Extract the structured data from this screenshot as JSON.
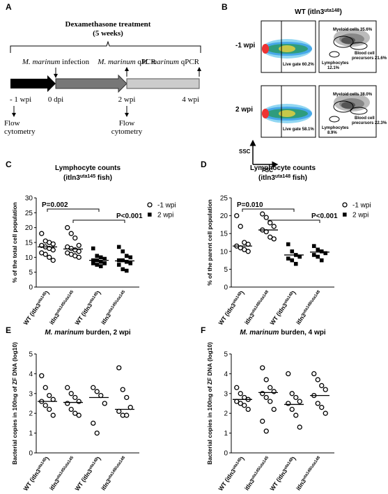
{
  "panel_a": {
    "letter": "A",
    "treatment": "Dexamethasone treatment",
    "duration": "(5 weeks)",
    "events": [
      [
        "M. marinum",
        " infection"
      ],
      [
        "M. marinum",
        " qPCR"
      ],
      [
        "M. marinum",
        " qPCR"
      ]
    ],
    "timepoints": [
      "- 1 wpi",
      "0 dpi",
      "2 wpi",
      "4 wpi"
    ],
    "flow": [
      [
        "Flow",
        "cytometry"
      ],
      [
        "Flow",
        "cytometry"
      ]
    ]
  },
  "panel_b": {
    "letter": "B",
    "title": [
      "WT (itln3",
      "uta148",
      ")"
    ],
    "rows": [
      {
        "label": "-1 wpi",
        "live_gate": "Live gate 60.2%",
        "myeloid": "Myeloid cells 35.6%",
        "precursors": [
          "Blood cell",
          "precursors 21.6%"
        ],
        "lymphocytes": [
          "Lymphocytes",
          "12.1%"
        ]
      },
      {
        "label": "2 wpi",
        "live_gate": "Live gate 58.1%",
        "myeloid": "Myeloid cells 38.0%",
        "precursors": [
          "Blood cell",
          "precursors 22.3%"
        ],
        "lymphocytes": [
          "Lymphocytes",
          "8.9%"
        ]
      }
    ],
    "y_axis": "SSC",
    "x_axis": "FSC"
  },
  "chart_data": [
    {
      "type": "dot",
      "panel": "C",
      "title": "Lymphocyte counts",
      "subtitle": [
        "(itln3",
        "uta145",
        " fish)"
      ],
      "ylabel": "% of the total cell population",
      "categories": [
        [
          "WT (itln3",
          "uta145",
          ")"
        ],
        [
          "itln3",
          "uta145/uta145"
        ],
        [
          "WT (itln3",
          "uta145",
          ")"
        ],
        [
          "itln3",
          "uta145/uta145"
        ]
      ],
      "series": [
        {
          "name": "-1 wpi",
          "marker": "circle",
          "color": "#000000",
          "values": [
            [
              18,
              15.5,
              15,
              14.5,
              14,
              13.5,
              13,
              12.5,
              11.5,
              11,
              10,
              9
            ],
            [
              20,
              18,
              16.5,
              14,
              13.5,
              13,
              12.5,
              12,
              11.5,
              11,
              10.5,
              10
            ],
            null,
            null
          ]
        },
        {
          "name": "2 wpi",
          "marker": "square",
          "color": "#000000",
          "values": [
            null,
            null,
            [
              13,
              10.5,
              10,
              9.5,
              9,
              9,
              8.5,
              8,
              8,
              7.5,
              7
            ],
            [
              13.5,
              12,
              10.5,
              10,
              9,
              9,
              8.5,
              8,
              7.5,
              6,
              5.5
            ]
          ]
        }
      ],
      "means": [
        13.5,
        12.8,
        9,
        8.8
      ],
      "ylim": [
        0,
        30
      ],
      "yticks": [
        0,
        5,
        10,
        15,
        20,
        25,
        30
      ],
      "annotations": [
        "P=0.002",
        "P<0.001"
      ],
      "legend": "upper right"
    },
    {
      "type": "dot",
      "panel": "D",
      "title": "Lymphocyte counts",
      "subtitle": [
        "(itln3",
        "uta148",
        " fish)"
      ],
      "ylabel": "% of the parent cell population",
      "categories": [
        [
          "WT (itln3",
          "uta148",
          ")"
        ],
        [
          "itln3",
          "uta148/uta148"
        ],
        [
          "WT (itln3",
          "uta148",
          ")"
        ],
        [
          "itln3",
          "uta148/uta148"
        ]
      ],
      "series": [
        {
          "name": "-1 wpi",
          "marker": "circle",
          "color": "#000000",
          "values": [
            [
              20,
              17,
              12.5,
              12,
              11.5,
              11,
              10.5,
              10
            ],
            [
              20.5,
              19.5,
              18,
              17,
              16,
              15.5,
              14,
              13.5
            ],
            null,
            null
          ]
        },
        {
          "name": "2 wpi",
          "marker": "square",
          "color": "#000000",
          "values": [
            null,
            null,
            [
              12,
              10,
              9,
              8.5,
              8,
              7.5,
              6.5
            ],
            [
              11.5,
              10.5,
              10,
              9.5,
              9,
              8.5,
              7.5
            ]
          ]
        }
      ],
      "means": [
        11.5,
        16,
        9,
        9.8
      ],
      "ylim": [
        0,
        25
      ],
      "yticks": [
        0,
        5,
        10,
        15,
        20,
        25
      ],
      "annotations": [
        "P=0.010",
        "P<0.001"
      ],
      "legend": "upper right"
    },
    {
      "type": "dot",
      "panel": "E",
      "title": [
        "M. marinum",
        " burden, 2 wpi"
      ],
      "ylabel": "Bacterial copies in 100ng of ZF DNA (log10)",
      "categories": [
        [
          "WT (itln3",
          "uta145",
          ")"
        ],
        [
          "itln3",
          "uta145/uta145"
        ],
        [
          "WT (itln3",
          "uta148",
          ")"
        ],
        [
          "itln3",
          "uta148/uta148"
        ]
      ],
      "series": [
        {
          "marker": "circle",
          "color": "#000000",
          "values": [
            [
              3.9,
              3.3,
              2.9,
              2.7,
              2.6,
              2.4,
              2.2,
              1.9
            ],
            [
              3.3,
              3.0,
              2.8,
              2.6,
              2.5,
              2.2,
              2.0,
              1.9
            ],
            [
              3.3,
              3.1,
              2.9,
              2.5,
              1.5,
              1.0
            ],
            [
              4.3,
              3.2,
              2.8,
              2.3,
              2.1,
              1.9,
              1.9
            ]
          ]
        }
      ],
      "means": [
        2.6,
        2.55,
        2.8,
        2.2
      ],
      "ylim": [
        0,
        5
      ],
      "yticks": [
        0,
        1,
        2,
        3,
        4,
        5
      ]
    },
    {
      "type": "dot",
      "panel": "F",
      "title": [
        "M. marinum",
        " burden, 4 wpi"
      ],
      "ylabel": "Bacterial copies in 100ng of ZF DNA (log10)",
      "categories": [
        [
          "WT (itln3",
          "uta145",
          ")"
        ],
        [
          "itln3",
          "uta145/uta145"
        ],
        [
          "WT (itln3",
          "uta148",
          ")"
        ],
        [
          "itln3",
          "uta148/uta148"
        ]
      ],
      "series": [
        {
          "marker": "circle",
          "color": "#000000",
          "values": [
            [
              3.3,
              3.0,
              2.8,
              2.7,
              2.6,
              2.5,
              2.4,
              2.2
            ],
            [
              4.3,
              3.7,
              3.3,
              3.1,
              3.0,
              2.8,
              2.6,
              2.2,
              1.6,
              1.1
            ],
            [
              4.0,
              3.0,
              2.8,
              2.6,
              2.5,
              2.2,
              1.9,
              1.3
            ],
            [
              4.0,
              3.7,
              3.4,
              3.2,
              2.9,
              2.5,
              2.3,
              2.0
            ]
          ]
        }
      ],
      "means": [
        2.7,
        3.05,
        2.45,
        2.9
      ],
      "ylim": [
        0,
        5
      ],
      "yticks": [
        0,
        1,
        2,
        3,
        4,
        5
      ]
    }
  ]
}
